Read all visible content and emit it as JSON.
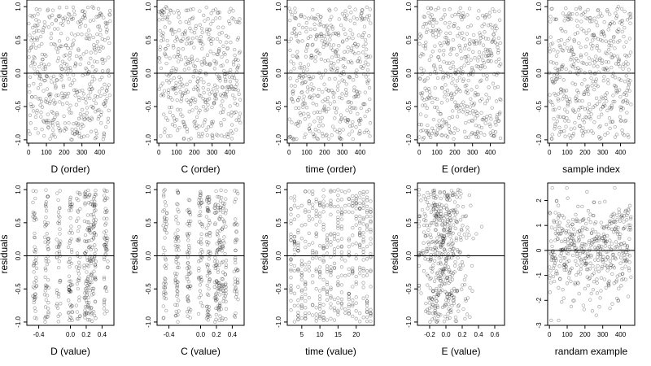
{
  "chart_data": [
    {
      "type": "scatter",
      "xlabel": "D (order)",
      "ylabel": "residuals",
      "xlim": [
        -10,
        480
      ],
      "ylim": [
        -1.05,
        1.1
      ],
      "xticks": [
        0,
        100,
        200,
        300,
        400
      ],
      "xtick_labels": [
        "0",
        "100",
        "200",
        "300",
        "400"
      ],
      "yticks": [
        -1,
        -0.5,
        0,
        0.5,
        1
      ],
      "ytick_labels": [
        "-1.0",
        "-0.5",
        "0.0",
        "0.5",
        "1.0"
      ],
      "reference_line_y": 0,
      "points": "approximately 460 residual points, uniform noise between -1 and 1"
    },
    {
      "type": "scatter",
      "xlabel": "C (order)",
      "ylabel": "residuals",
      "xlim": [
        -10,
        480
      ],
      "ylim": [
        -1.05,
        1.1
      ],
      "xticks": [
        0,
        100,
        200,
        300,
        400
      ],
      "xtick_labels": [
        "0",
        "100",
        "200",
        "300",
        "400"
      ],
      "yticks": [
        -1,
        -0.5,
        0,
        0.5,
        1
      ],
      "ytick_labels": [
        "-1.0",
        "-0.5",
        "0.0",
        "0.5",
        "1.0"
      ],
      "reference_line_y": 0
    },
    {
      "type": "scatter",
      "xlabel": "time (order)",
      "ylabel": "residuals",
      "xlim": [
        -10,
        480
      ],
      "ylim": [
        -1.05,
        1.1
      ],
      "xticks": [
        0,
        100,
        200,
        300,
        400
      ],
      "xtick_labels": [
        "0",
        "100",
        "200",
        "300",
        "400"
      ],
      "yticks": [
        -1,
        -0.5,
        0,
        0.5,
        1
      ],
      "ytick_labels": [
        "-1.0",
        "-0.5",
        "0.0",
        "0.5",
        "1.0"
      ],
      "reference_line_y": 0
    },
    {
      "type": "scatter",
      "xlabel": "E (order)",
      "ylabel": "residuals",
      "xlim": [
        -10,
        480
      ],
      "ylim": [
        -1.05,
        1.1
      ],
      "xticks": [
        0,
        100,
        200,
        300,
        400
      ],
      "xtick_labels": [
        "0",
        "100",
        "200",
        "300",
        "400"
      ],
      "yticks": [
        -1,
        -0.5,
        0,
        0.5,
        1
      ],
      "ytick_labels": [
        "-1.0",
        "-0.5",
        "0.0",
        "0.5",
        "1.0"
      ],
      "reference_line_y": 0
    },
    {
      "type": "scatter",
      "xlabel": "sample index",
      "ylabel": "residuals",
      "xlim": [
        -10,
        480
      ],
      "ylim": [
        -1.05,
        1.1
      ],
      "xticks": [
        0,
        100,
        200,
        300,
        400
      ],
      "xtick_labels": [
        "0",
        "100",
        "200",
        "300",
        "400"
      ],
      "yticks": [
        -1,
        -0.5,
        0,
        0.5,
        1
      ],
      "ytick_labels": [
        "-1.0",
        "-0.5",
        "0.0",
        "0.5",
        "1.0"
      ],
      "reference_line_y": 0
    },
    {
      "type": "scatter",
      "xlabel": "D (value)",
      "ylabel": "residuals",
      "xlim": [
        -0.55,
        0.55
      ],
      "ylim": [
        -1.05,
        1.1
      ],
      "xticks": [
        -0.4,
        0,
        0.2,
        0.4
      ],
      "xtick_labels": [
        "-0.4",
        "0.0",
        "0.2",
        "0.4"
      ],
      "yticks": [
        -1,
        -0.5,
        0,
        0.5,
        1
      ],
      "ytick_labels": [
        "-1.0",
        "-0.5",
        "0.0",
        "0.5",
        "1.0"
      ],
      "reference_line_y": 0
    },
    {
      "type": "scatter",
      "xlabel": "C (value)",
      "ylabel": "residuals",
      "xlim": [
        -0.55,
        0.55
      ],
      "ylim": [
        -1.05,
        1.1
      ],
      "xticks": [
        -0.4,
        0,
        0.2,
        0.4
      ],
      "xtick_labels": [
        "-0.4",
        "0.0",
        "0.2",
        "0.4"
      ],
      "yticks": [
        -1,
        -0.5,
        0,
        0.5,
        1
      ],
      "ytick_labels": [
        "-1.0",
        "-0.5",
        "0.0",
        "0.5",
        "1.0"
      ],
      "reference_line_y": 0
    },
    {
      "type": "scatter",
      "xlabel": "time (value)",
      "ylabel": "residuals",
      "xlim": [
        1,
        25
      ],
      "ylim": [
        -1.05,
        1.1
      ],
      "xticks": [
        5,
        10,
        15,
        20
      ],
      "xtick_labels": [
        "5",
        "10",
        "15",
        "20"
      ],
      "yticks": [
        -1,
        -0.5,
        0,
        0.5,
        1
      ],
      "ytick_labels": [
        "-1.0",
        "-0.5",
        "0.0",
        "0.5",
        "1.0"
      ],
      "reference_line_y": 0
    },
    {
      "type": "scatter",
      "xlabel": "E (value)",
      "ylabel": "residuals",
      "xlim": [
        -0.35,
        0.72
      ],
      "ylim": [
        -1.05,
        1.1
      ],
      "xticks": [
        -0.2,
        0,
        0.2,
        0.4,
        0.6
      ],
      "xtick_labels": [
        "-0.2",
        "0.0",
        "0.2",
        "0.4",
        "0.6"
      ],
      "yticks": [
        -1,
        -0.5,
        0,
        0.5,
        1
      ],
      "ytick_labels": [
        "-1.0",
        "-0.5",
        "0.0",
        "0.5",
        "1.0"
      ],
      "reference_line_y": 0
    },
    {
      "type": "scatter",
      "xlabel": "randam example",
      "ylabel": "residuals",
      "xlim": [
        -10,
        480
      ],
      "ylim": [
        -3,
        2.7
      ],
      "xticks": [
        0,
        100,
        200,
        300,
        400
      ],
      "xtick_labels": [
        "0",
        "100",
        "200",
        "300",
        "400"
      ],
      "yticks": [
        -3,
        -2,
        -1,
        0,
        1,
        2
      ],
      "ytick_labels": [
        "-3",
        "-2",
        "-1",
        "0",
        "1",
        "2"
      ],
      "reference_line_y": 0
    }
  ]
}
